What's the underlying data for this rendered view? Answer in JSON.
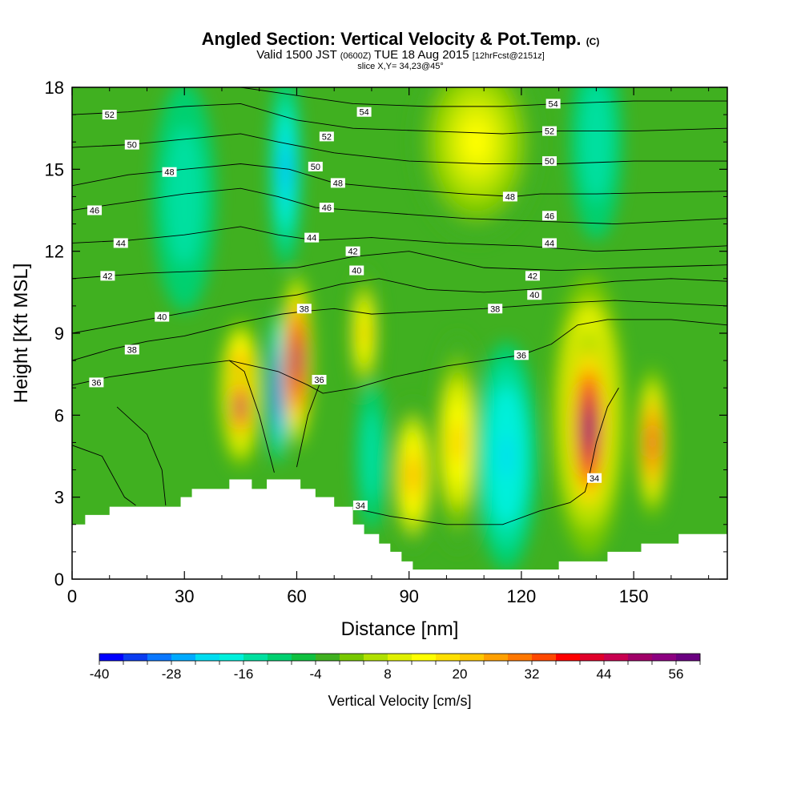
{
  "title": {
    "main": "Angled Section: Vertical Velocity & Pot.Temp.",
    "unit": "(C)",
    "line2_prefix": "Valid 1500 JST",
    "line2_z": "(0600Z)",
    "line2_date": "TUE 18 Aug 2015",
    "line2_fcst": "[12hrFcst@2151z]",
    "line3": "slice X,Y= 34,23@45°"
  },
  "chart_data": {
    "type": "heatmap",
    "xlabel": "Distance [nm]",
    "ylabel": "Height [Kft MSL]",
    "xlim": [
      0,
      175
    ],
    "ylim": [
      0,
      18
    ],
    "x_ticks": [
      "0",
      "30",
      "60",
      "90",
      "120",
      "150"
    ],
    "y_ticks": [
      "0",
      "3",
      "6",
      "9",
      "12",
      "15",
      "18"
    ],
    "colorbar": {
      "label": "Vertical Velocity [cm/s]",
      "tick_labels": [
        "-40",
        "-28",
        "-16",
        "-4",
        "8",
        "20",
        "32",
        "44",
        "56"
      ],
      "colors": [
        "#0000ff",
        "#0a3cf0",
        "#0a78ff",
        "#00aaff",
        "#00dcf0",
        "#00f0dc",
        "#00e0a0",
        "#00d070",
        "#10c040",
        "#40b020",
        "#78c800",
        "#b0e000",
        "#e0f000",
        "#ffff00",
        "#ffe000",
        "#ffc800",
        "#ffa000",
        "#ff7800",
        "#ff4800",
        "#ff0000",
        "#e0002a",
        "#c80050",
        "#a00068",
        "#8c0080",
        "#6a0080"
      ]
    },
    "velocity_cells": [
      {
        "x": 45,
        "z": 6.8,
        "rx": 4,
        "rz": 2.3,
        "value": 44
      },
      {
        "x": 45,
        "z": 6.3,
        "rx": 2.4,
        "rz": 1.2,
        "value": 56
      },
      {
        "x": 55,
        "z": 7,
        "rx": 1.8,
        "rz": 2.3,
        "value": -40
      },
      {
        "x": 60,
        "z": 8,
        "rx": 3,
        "rz": 2.6,
        "value": 52
      },
      {
        "x": 78,
        "z": 9,
        "rx": 3,
        "rz": 2,
        "value": 20
      },
      {
        "x": 80,
        "z": 4.5,
        "rx": 3,
        "rz": 2.3,
        "value": -16
      },
      {
        "x": 91,
        "z": 3.8,
        "rx": 4,
        "rz": 2.3,
        "value": 26
      },
      {
        "x": 103,
        "z": 5,
        "rx": 5,
        "rz": 3.3,
        "value": 20
      },
      {
        "x": 116,
        "z": 4.5,
        "rx": 6,
        "rz": 3.5,
        "value": -22
      },
      {
        "x": 138,
        "z": 6,
        "rx": 7,
        "rz": 4.3,
        "value": 40
      },
      {
        "x": 138,
        "z": 5.5,
        "rx": 4,
        "rz": 3,
        "value": 60
      },
      {
        "x": 155,
        "z": 5,
        "rx": 3,
        "rz": 2.3,
        "value": 40
      },
      {
        "x": 57,
        "z": 15,
        "rx": 3,
        "rz": 3,
        "value": -28
      },
      {
        "x": 30,
        "z": 14,
        "rx": 6,
        "rz": 3.5,
        "value": -16
      },
      {
        "x": 140,
        "z": 16,
        "rx": 5,
        "rz": 3,
        "value": -16
      },
      {
        "x": 108,
        "z": 16,
        "rx": 12,
        "rz": 3,
        "value": 14
      }
    ],
    "terrain": [
      {
        "x": 0,
        "z": 2
      },
      {
        "x": 3.5,
        "z": 2
      },
      {
        "x": 3.5,
        "z": 2.35
      },
      {
        "x": 10,
        "z": 2.35
      },
      {
        "x": 10,
        "z": 2.65
      },
      {
        "x": 29,
        "z": 2.65
      },
      {
        "x": 29,
        "z": 3
      },
      {
        "x": 32,
        "z": 3
      },
      {
        "x": 32,
        "z": 3.3
      },
      {
        "x": 42,
        "z": 3.3
      },
      {
        "x": 42,
        "z": 3.65
      },
      {
        "x": 48,
        "z": 3.65
      },
      {
        "x": 48,
        "z": 3.3
      },
      {
        "x": 52,
        "z": 3.3
      },
      {
        "x": 52,
        "z": 3.65
      },
      {
        "x": 61,
        "z": 3.65
      },
      {
        "x": 61,
        "z": 3.3
      },
      {
        "x": 65,
        "z": 3.3
      },
      {
        "x": 65,
        "z": 3
      },
      {
        "x": 70,
        "z": 3
      },
      {
        "x": 70,
        "z": 2.65
      },
      {
        "x": 75,
        "z": 2.65
      },
      {
        "x": 75,
        "z": 2
      },
      {
        "x": 78,
        "z": 2
      },
      {
        "x": 78,
        "z": 1.65
      },
      {
        "x": 82,
        "z": 1.65
      },
      {
        "x": 82,
        "z": 1.3
      },
      {
        "x": 85,
        "z": 1.3
      },
      {
        "x": 85,
        "z": 1
      },
      {
        "x": 88,
        "z": 1
      },
      {
        "x": 88,
        "z": 0.65
      },
      {
        "x": 91,
        "z": 0.65
      },
      {
        "x": 91,
        "z": 0.35
      },
      {
        "x": 130,
        "z": 0.35
      },
      {
        "x": 130,
        "z": 0.65
      },
      {
        "x": 143,
        "z": 0.65
      },
      {
        "x": 143,
        "z": 1
      },
      {
        "x": 152,
        "z": 1
      },
      {
        "x": 152,
        "z": 1.3
      },
      {
        "x": 162,
        "z": 1.3
      },
      {
        "x": 162,
        "z": 1.65
      },
      {
        "x": 175,
        "z": 1.65
      }
    ],
    "isentropes": [
      {
        "label": "34",
        "points": [
          [
            75,
            2.6
          ],
          [
            85,
            2.3
          ],
          [
            100,
            2.0
          ],
          [
            115,
            2.0
          ],
          [
            125,
            2.5
          ],
          [
            133,
            2.8
          ],
          [
            137,
            3.2
          ],
          [
            138,
            3.7
          ],
          [
            140,
            5
          ],
          [
            143,
            6.3
          ],
          [
            146,
            7
          ]
        ],
        "labels": [
          [
            77,
            2.7
          ],
          [
            139.5,
            3.7
          ]
        ]
      },
      {
        "label": "36",
        "points": [
          [
            0,
            7.1
          ],
          [
            10,
            7.4
          ],
          [
            20,
            7.6
          ],
          [
            30,
            7.8
          ],
          [
            42,
            8.0
          ],
          [
            55,
            7.6
          ],
          [
            63,
            7.1
          ],
          [
            67,
            6.8
          ],
          [
            76,
            7.0
          ],
          [
            86,
            7.4
          ],
          [
            100,
            7.8
          ],
          [
            115,
            8.1
          ],
          [
            120,
            8.2
          ],
          [
            128,
            8.6
          ],
          [
            135,
            9.3
          ],
          [
            143,
            9.5
          ],
          [
            150,
            9.5
          ],
          [
            160,
            9.5
          ],
          [
            175,
            9.3
          ]
        ],
        "labels": [
          [
            6.5,
            7.2
          ],
          [
            66,
            7.3
          ],
          [
            120,
            8.2
          ]
        ]
      },
      {
        "label": "38",
        "points": [
          [
            0,
            8.0
          ],
          [
            10,
            8.4
          ],
          [
            20,
            8.7
          ],
          [
            30,
            8.9
          ],
          [
            45,
            9.4
          ],
          [
            56,
            9.7
          ],
          [
            62,
            9.8
          ],
          [
            70,
            9.9
          ],
          [
            80,
            9.7
          ],
          [
            95,
            9.8
          ],
          [
            110,
            9.9
          ],
          [
            120,
            10.0
          ],
          [
            130,
            10.1
          ],
          [
            145,
            10.2
          ],
          [
            160,
            10.1
          ],
          [
            175,
            10.0
          ]
        ],
        "labels": [
          [
            16,
            8.4
          ],
          [
            62,
            9.9
          ],
          [
            113,
            9.9
          ]
        ]
      },
      {
        "label": "40",
        "points": [
          [
            0,
            9.0
          ],
          [
            12,
            9.3
          ],
          [
            24,
            9.6
          ],
          [
            36,
            9.9
          ],
          [
            48,
            10.2
          ],
          [
            60,
            10.4
          ],
          [
            72,
            10.8
          ],
          [
            82,
            11.0
          ],
          [
            95,
            10.6
          ],
          [
            110,
            10.5
          ],
          [
            122,
            10.6
          ],
          [
            130,
            10.7
          ],
          [
            145,
            10.9
          ],
          [
            160,
            11.0
          ],
          [
            175,
            10.9
          ]
        ],
        "labels": [
          [
            24,
            9.6
          ],
          [
            76,
            11.3
          ],
          [
            123.5,
            10.4
          ]
        ]
      },
      {
        "label": "42",
        "points": [
          [
            0,
            11.0
          ],
          [
            20,
            11.2
          ],
          [
            40,
            11.3
          ],
          [
            60,
            11.4
          ],
          [
            75,
            11.8
          ],
          [
            90,
            12.0
          ],
          [
            110,
            11.4
          ],
          [
            130,
            11.3
          ],
          [
            150,
            11.4
          ],
          [
            175,
            11.5
          ]
        ],
        "labels": [
          [
            9.5,
            11.1
          ],
          [
            75,
            12.0
          ],
          [
            123,
            11.1
          ]
        ]
      },
      {
        "label": "44",
        "points": [
          [
            0,
            12.3
          ],
          [
            15,
            12.4
          ],
          [
            30,
            12.6
          ],
          [
            45,
            12.9
          ],
          [
            55,
            12.6
          ],
          [
            65,
            12.4
          ],
          [
            80,
            12.5
          ],
          [
            100,
            12.3
          ],
          [
            120,
            12.2
          ],
          [
            140,
            12.0
          ],
          [
            160,
            12.1
          ],
          [
            175,
            12.2
          ]
        ],
        "labels": [
          [
            13,
            12.3
          ],
          [
            64,
            12.5
          ],
          [
            127.5,
            12.3
          ]
        ]
      },
      {
        "label": "46",
        "points": [
          [
            0,
            13.5
          ],
          [
            15,
            13.8
          ],
          [
            30,
            14.1
          ],
          [
            45,
            14.3
          ],
          [
            55,
            14.0
          ],
          [
            65,
            13.6
          ],
          [
            85,
            13.4
          ],
          [
            105,
            13.2
          ],
          [
            125,
            13.1
          ],
          [
            145,
            13.0
          ],
          [
            175,
            13.2
          ]
        ],
        "labels": [
          [
            6,
            13.5
          ],
          [
            68,
            13.6
          ],
          [
            127.5,
            13.3
          ]
        ]
      },
      {
        "label": "48",
        "points": [
          [
            0,
            14.4
          ],
          [
            15,
            14.8
          ],
          [
            30,
            15.0
          ],
          [
            45,
            15.2
          ],
          [
            58,
            15.0
          ],
          [
            70,
            14.5
          ],
          [
            85,
            14.3
          ],
          [
            105,
            14.1
          ],
          [
            118,
            14.0
          ],
          [
            125,
            14.1
          ],
          [
            140,
            14.1
          ],
          [
            175,
            14.2
          ]
        ],
        "labels": [
          [
            26,
            14.9
          ],
          [
            71,
            14.5
          ],
          [
            117,
            14.0
          ]
        ]
      },
      {
        "label": "50",
        "points": [
          [
            0,
            15.8
          ],
          [
            15,
            15.9
          ],
          [
            30,
            16.1
          ],
          [
            45,
            16.3
          ],
          [
            55,
            16.0
          ],
          [
            70,
            15.6
          ],
          [
            90,
            15.3
          ],
          [
            110,
            15.2
          ],
          [
            130,
            15.2
          ],
          [
            150,
            15.3
          ],
          [
            175,
            15.3
          ]
        ],
        "labels": [
          [
            16,
            15.9
          ],
          [
            65,
            15.1
          ],
          [
            127.5,
            15.3
          ]
        ]
      },
      {
        "label": "52",
        "points": [
          [
            0,
            17.0
          ],
          [
            15,
            17.1
          ],
          [
            30,
            17.3
          ],
          [
            45,
            17.4
          ],
          [
            60,
            16.8
          ],
          [
            75,
            16.5
          ],
          [
            95,
            16.4
          ],
          [
            115,
            16.3
          ],
          [
            130,
            16.4
          ],
          [
            150,
            16.4
          ],
          [
            175,
            16.5
          ]
        ],
        "labels": [
          [
            10,
            17.0
          ],
          [
            68,
            16.2
          ],
          [
            127.5,
            16.4
          ]
        ]
      },
      {
        "label": "54",
        "points": [
          [
            45,
            18.0
          ],
          [
            60,
            17.7
          ],
          [
            75,
            17.4
          ],
          [
            95,
            17.3
          ],
          [
            115,
            17.3
          ],
          [
            130,
            17.4
          ],
          [
            150,
            17.5
          ],
          [
            175,
            17.5
          ]
        ],
        "labels": [
          [
            78,
            17.1
          ],
          [
            128.5,
            17.4
          ]
        ]
      },
      {
        "label": "",
        "points": [
          [
            0,
            4.9
          ],
          [
            8,
            4.5
          ],
          [
            14,
            3.0
          ],
          [
            17,
            2.7
          ]
        ],
        "labels": []
      },
      {
        "label": "",
        "points": [
          [
            12,
            6.3
          ],
          [
            20,
            5.3
          ],
          [
            24,
            4.0
          ],
          [
            25,
            2.7
          ]
        ],
        "labels": []
      },
      {
        "label": "",
        "points": [
          [
            60,
            4.1
          ],
          [
            63,
            6.0
          ],
          [
            66,
            7.1
          ]
        ],
        "labels": []
      },
      {
        "label": "",
        "points": [
          [
            54,
            3.9
          ],
          [
            50,
            6.0
          ],
          [
            46,
            7.6
          ],
          [
            42,
            8.0
          ]
        ],
        "labels": []
      }
    ]
  }
}
